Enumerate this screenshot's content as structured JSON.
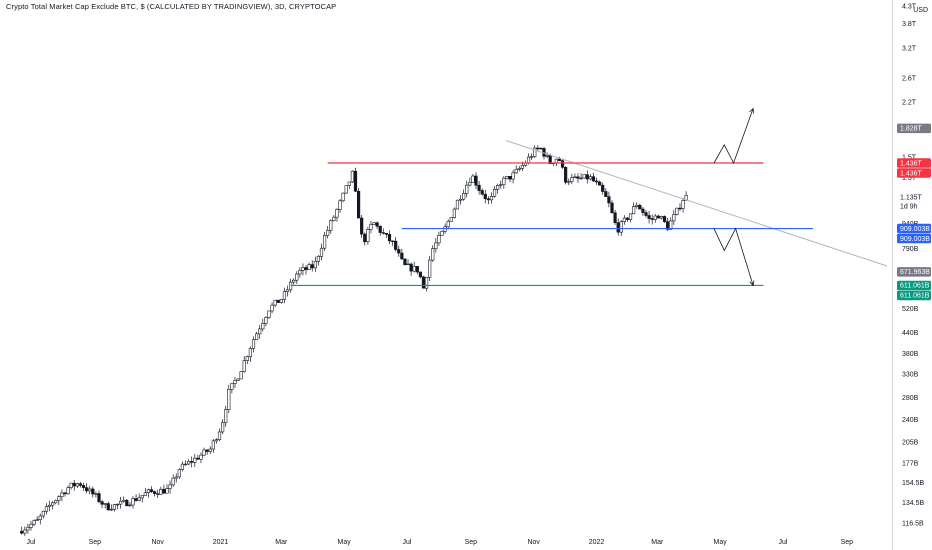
{
  "header": {
    "title": "Crypto Total Market Cap Exclude BTC, $ (CALCULATED BY TRADINGVIEW), 3D, CRYPTOCAP"
  },
  "chart_data": {
    "type": "candlestick",
    "currency_label": "USD",
    "y_scale": "log",
    "ylim_usd_billions": [
      112,
      4300
    ],
    "y_ticks": [
      {
        "label": "4.3T",
        "value": 4300
      },
      {
        "label": "3.8T",
        "value": 3800
      },
      {
        "label": "3.2T",
        "value": 3200
      },
      {
        "label": "2.6T",
        "value": 2600
      },
      {
        "label": "2.2T",
        "value": 2200
      },
      {
        "label": "1.8T",
        "value": 1800
      },
      {
        "label": "1.5T",
        "value": 1500
      },
      {
        "label": "1.3T",
        "value": 1300
      },
      {
        "label": "940B",
        "value": 940
      },
      {
        "label": "790B",
        "value": 790
      },
      {
        "label": "520B",
        "value": 520
      },
      {
        "label": "440B",
        "value": 440
      },
      {
        "label": "380B",
        "value": 380
      },
      {
        "label": "330B",
        "value": 330
      },
      {
        "label": "280B",
        "value": 280
      },
      {
        "label": "240B",
        "value": 240
      },
      {
        "label": "205B",
        "value": 205
      },
      {
        "label": "177B",
        "value": 177
      },
      {
        "label": "154.5B",
        "value": 154.5
      },
      {
        "label": "134.5B",
        "value": 134.5
      },
      {
        "label": "116.5B",
        "value": 116.5
      }
    ],
    "x_ticks": [
      "Jul",
      "Sep",
      "Nov",
      "2021",
      "Mar",
      "May",
      "Jul",
      "Sep",
      "Nov",
      "2022",
      "Mar",
      "May",
      "Jul",
      "Sep"
    ],
    "x_tick_positions_order": "chronological, 2020-07 to 2022-09",
    "price_badges": [
      {
        "label": "1.828T",
        "value": 1828,
        "color": "#787b86"
      },
      {
        "label": "1.436T",
        "value": 1436,
        "color": "#f23645"
      },
      {
        "label": "1.436T",
        "value": 1436,
        "color": "#f23645"
      },
      {
        "label": "909.003B",
        "value": 909.003,
        "color": "#2962ff"
      },
      {
        "label": "909.003B",
        "value": 909.003,
        "color": "#2962ff"
      },
      {
        "label": "671.963B",
        "value": 671.963,
        "color": "#787b86"
      },
      {
        "label": "611.061B",
        "value": 611.061,
        "color": "#089981"
      },
      {
        "label": "611.061B",
        "value": 611.061,
        "color": "#089981"
      }
    ],
    "countdown": {
      "price": "1.135T",
      "time": "1d 9h"
    },
    "horizontal_levels": [
      {
        "name": "resistance",
        "value": 1436,
        "color": "#f23645",
        "from": "2021-04-15",
        "to": "2022-06-12"
      },
      {
        "name": "mid-support",
        "value": 909.003,
        "color": "#2962ff",
        "from": "2021-06-26",
        "to": "2022-07-30"
      },
      {
        "name": "support",
        "value": 611.061,
        "color": "#089981",
        "from": "2021-03-10",
        "to": "2022-06-12"
      }
    ],
    "trendline": {
      "color": "#b2b5be",
      "from": {
        "date": "2021-10-05",
        "value": 1680
      },
      "to": {
        "date": "2022-10-10",
        "value": 700
      }
    },
    "projections": [
      {
        "name": "bullish-path",
        "points": [
          {
            "date": "2022-04-25",
            "value": 1436
          },
          {
            "date": "2022-05-05",
            "value": 1630
          },
          {
            "date": "2022-05-14",
            "value": 1436
          },
          {
            "date": "2022-06-02",
            "value": 2100
          }
        ]
      },
      {
        "name": "bearish-path",
        "points": [
          {
            "date": "2022-04-25",
            "value": 909
          },
          {
            "date": "2022-05-05",
            "value": 780
          },
          {
            "date": "2022-05-16",
            "value": 909
          },
          {
            "date": "2022-06-02",
            "value": 611
          }
        ]
      }
    ],
    "price_path_usd_billions": [
      [
        "2020-06-22",
        110
      ],
      [
        "2020-07-10",
        118
      ],
      [
        "2020-07-25",
        135
      ],
      [
        "2020-08-10",
        150
      ],
      [
        "2020-08-20",
        154
      ],
      [
        "2020-09-05",
        140
      ],
      [
        "2020-09-15",
        130
      ],
      [
        "2020-09-25",
        132
      ],
      [
        "2020-10-10",
        136
      ],
      [
        "2020-10-25",
        144
      ],
      [
        "2020-11-15",
        147
      ],
      [
        "2020-11-25",
        170
      ],
      [
        "2020-12-10",
        182
      ],
      [
        "2020-12-25",
        195
      ],
      [
        "2021-01-05",
        230
      ],
      [
        "2021-01-12",
        290
      ],
      [
        "2021-01-22",
        330
      ],
      [
        "2021-02-05",
        420
      ],
      [
        "2021-02-20",
        520
      ],
      [
        "2021-03-05",
        560
      ],
      [
        "2021-03-20",
        670
      ],
      [
        "2021-04-05",
        700
      ],
      [
        "2021-04-15",
        860
      ],
      [
        "2021-04-28",
        1050
      ],
      [
        "2021-05-12",
        1330
      ],
      [
        "2021-05-16",
        1100
      ],
      [
        "2021-05-22",
        820
      ],
      [
        "2021-06-01",
        950
      ],
      [
        "2021-06-10",
        880
      ],
      [
        "2021-06-20",
        820
      ],
      [
        "2021-07-01",
        700
      ],
      [
        "2021-07-15",
        680
      ],
      [
        "2021-07-20",
        600
      ],
      [
        "2021-07-28",
        780
      ],
      [
        "2021-08-10",
        910
      ],
      [
        "2021-08-22",
        1100
      ],
      [
        "2021-09-05",
        1320
      ],
      [
        "2021-09-12",
        1200
      ],
      [
        "2021-09-22",
        1090
      ],
      [
        "2021-10-02",
        1250
      ],
      [
        "2021-10-15",
        1320
      ],
      [
        "2021-10-25",
        1420
      ],
      [
        "2021-11-05",
        1560
      ],
      [
        "2021-11-10",
        1600
      ],
      [
        "2021-11-20",
        1440
      ],
      [
        "2021-11-28",
        1500
      ],
      [
        "2021-12-05",
        1280
      ],
      [
        "2021-12-15",
        1280
      ],
      [
        "2021-12-28",
        1300
      ],
      [
        "2022-01-05",
        1230
      ],
      [
        "2022-01-15",
        1100
      ],
      [
        "2022-01-24",
        900
      ],
      [
        "2022-02-05",
        1000
      ],
      [
        "2022-02-12",
        1080
      ],
      [
        "2022-02-25",
        960
      ],
      [
        "2022-03-05",
        1000
      ],
      [
        "2022-03-14",
        920
      ],
      [
        "2022-03-22",
        1010
      ],
      [
        "2022-03-30",
        1135
      ]
    ]
  }
}
